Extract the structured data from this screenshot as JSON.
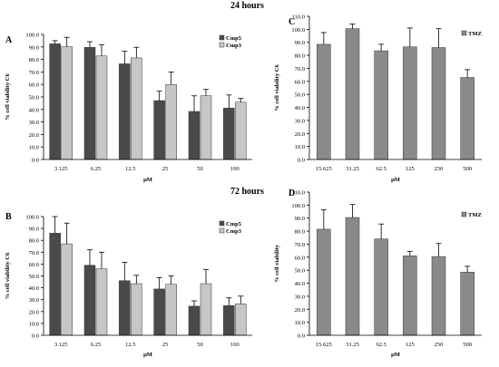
{
  "headings": {
    "top": "24 hours",
    "bottom": "72 hours"
  },
  "colors": {
    "cmp5": "#4a4a4a",
    "cmp3": "#c6c6c6",
    "tmz": "#8a8a8a",
    "axis": "#000000"
  },
  "chart_data": [
    {
      "id": "A",
      "type": "bar",
      "panel_label": "A",
      "categories": [
        "3.125",
        "6.25",
        "12.5",
        "25",
        "50",
        "100"
      ],
      "series": [
        {
          "name": "Cmp5",
          "values": [
            92.5,
            89.7,
            76.5,
            47.1,
            38.4,
            41.1
          ],
          "errors": [
            2.5,
            4.5,
            10.0,
            7.5,
            12.5,
            10.5
          ],
          "color": "#4a4a4a"
        },
        {
          "name": "Cmp3",
          "values": [
            90.2,
            82.8,
            81.2,
            59.9,
            51.0,
            45.8
          ],
          "errors": [
            7.5,
            9.0,
            8.5,
            10.0,
            5.0,
            3.0
          ],
          "color": "#c6c6c6"
        }
      ],
      "xlabel": "μM",
      "ylabel": "% cell viability  C6",
      "ylim": [
        0,
        100
      ],
      "yticks": [
        "0.0",
        "10.0",
        "20.0",
        "30.0",
        "40.0",
        "50.0",
        "60.0",
        "70.0",
        "80.0",
        "90.0",
        "100.0"
      ],
      "legend": "top-right",
      "grid": false
    },
    {
      "id": "C",
      "type": "bar",
      "panel_label": "C",
      "categories": [
        "15.625",
        "31.25",
        "62.5",
        "125",
        "250",
        "500"
      ],
      "series": [
        {
          "name": "TMZ",
          "values": [
            88.5,
            100.5,
            83.5,
            86.5,
            86.0,
            63.0
          ],
          "errors": [
            9.0,
            3.5,
            5.0,
            14.5,
            14.5,
            6.0
          ],
          "color": "#8a8a8a"
        }
      ],
      "xlabel": "μM",
      "ylabel": "% cell viability C6",
      "ylim": [
        0,
        110
      ],
      "yticks": [
        "0.0",
        "10.0",
        "20.0",
        "30.0",
        "40.0",
        "50.0",
        "60.0",
        "70.0",
        "80.0",
        "90.0",
        "100.0",
        "110.0"
      ],
      "legend": "top-right",
      "grid": false
    },
    {
      "id": "B",
      "type": "bar",
      "panel_label": "B",
      "categories": [
        "3.125",
        "6.25",
        "12.5",
        "25",
        "50",
        "100"
      ],
      "series": [
        {
          "name": "Cmp5",
          "values": [
            86.0,
            59.0,
            46.0,
            39.0,
            24.5,
            25.0
          ],
          "errors": [
            14.0,
            13.0,
            15.5,
            9.5,
            4.5,
            6.5
          ],
          "color": "#4a4a4a"
        },
        {
          "name": "Cmp3",
          "values": [
            77.0,
            56.0,
            43.5,
            43.0,
            43.5,
            26.5
          ],
          "errors": [
            17.5,
            14.0,
            7.0,
            7.0,
            12.0,
            6.5
          ],
          "color": "#c6c6c6"
        }
      ],
      "xlabel": "μM",
      "ylabel": "% cell viability  C6",
      "ylim": [
        0,
        100
      ],
      "yticks": [
        "0.0",
        "10.0",
        "20.0",
        "30.0",
        "40.0",
        "50.0",
        "60.0",
        "70.0",
        "80.0",
        "90.0",
        "100.0"
      ],
      "legend": "top-right",
      "grid": false
    },
    {
      "id": "D",
      "type": "bar",
      "panel_label": "D",
      "categories": [
        "15.625",
        "31.25",
        "62.5",
        "125",
        "250",
        "500"
      ],
      "series": [
        {
          "name": "TMZ",
          "values": [
            81.5,
            90.5,
            74.0,
            61.0,
            60.5,
            48.5
          ],
          "errors": [
            15.0,
            10.0,
            11.5,
            3.5,
            10.0,
            4.5
          ],
          "color": "#8a8a8a"
        }
      ],
      "xlabel": "μM",
      "ylabel": "% cell viability",
      "ylim": [
        0,
        110
      ],
      "yticks": [
        "0.0",
        "10.0",
        "20.0",
        "30.0",
        "40.0",
        "50.0",
        "60.0",
        "70.0",
        "80.0",
        "90.0",
        "100.0",
        "110.0"
      ],
      "legend": "top-right",
      "grid": false
    }
  ]
}
